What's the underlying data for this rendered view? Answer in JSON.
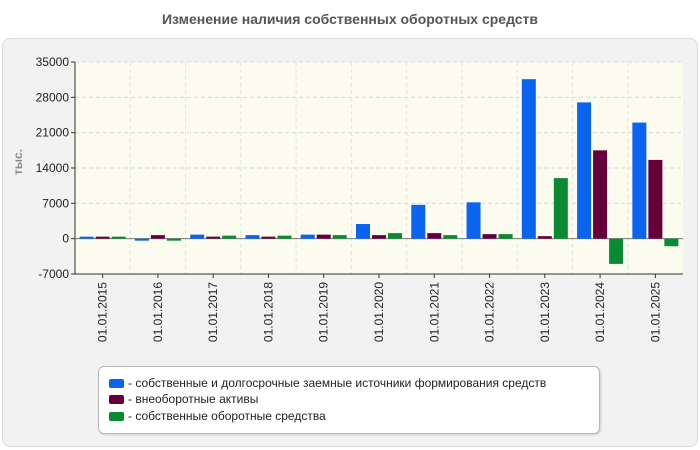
{
  "chart_data": {
    "type": "bar",
    "title": "Изменение наличия собственных оборотных средств",
    "ylabel": "тыс.",
    "xlabel": "",
    "ylim": [
      -7000,
      35000
    ],
    "yticks": [
      35000,
      28000,
      21000,
      14000,
      7000,
      0,
      -7000
    ],
    "grid": true,
    "legend_position": "bottom",
    "categories": [
      "01.01.2015",
      "01.01.2016",
      "01.01.2017",
      "01.01.2018",
      "01.01.2019",
      "01.01.2020",
      "01.01.2021",
      "01.01.2022",
      "01.01.2023",
      "01.01.2024",
      "01.01.2025"
    ],
    "series": [
      {
        "name": "- собственные и долгосрочные заемные источники формирования средств",
        "color": "#0a64f0",
        "values": [
          300,
          -300,
          800,
          700,
          800,
          2900,
          6700,
          7200,
          31600,
          27000,
          23000
        ]
      },
      {
        "name": "- внеоборотные активы",
        "color": "#66003a",
        "values": [
          300,
          700,
          400,
          400,
          800,
          700,
          1100,
          900,
          500,
          17500,
          15600
        ]
      },
      {
        "name": "- собственные оборотные средства",
        "color": "#0a8a32",
        "values": [
          300,
          -300,
          600,
          600,
          700,
          1100,
          700,
          900,
          12000,
          -5000,
          -1500
        ]
      }
    ]
  }
}
